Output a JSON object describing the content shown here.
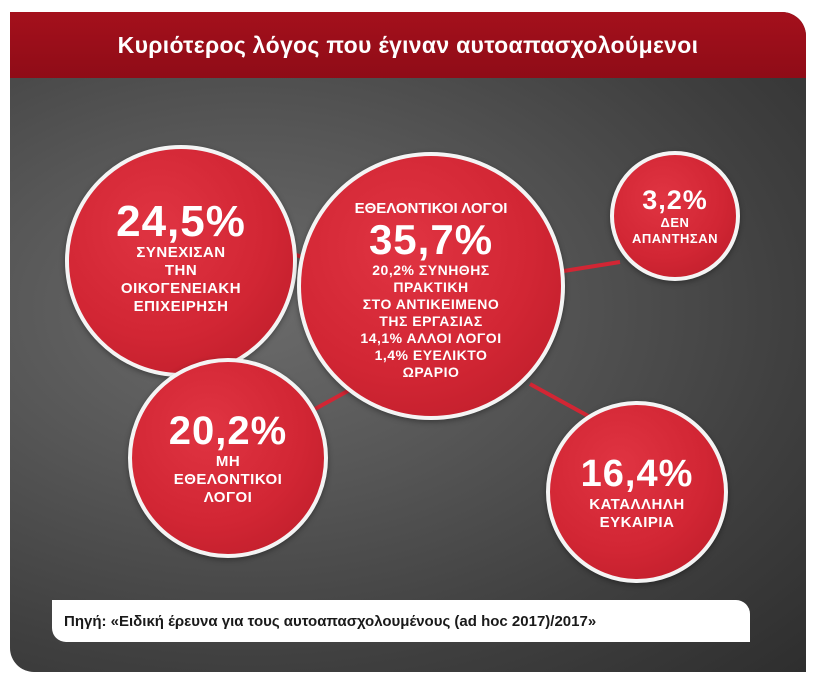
{
  "title": "Κυριότερος λόγος που έγιναν αυτοαπασχολούμενοι",
  "bubbles": {
    "family": {
      "percent": "24,5%",
      "lines": [
        "ΣΥΝΕΧΙΣΑΝ",
        "ΤΗΝ",
        "ΟΙΚΟΓΕΝΕΙΑΚΗ",
        "ΕΠΙΧΕΙΡΗΣΗ"
      ]
    },
    "volunteer": {
      "heading": "ΕΘΕΛΟΝΤΙΚΟΙ ΛΟΓΟΙ",
      "percent": "35,7%",
      "lines": [
        "20,2% ΣΥΝΗΘΗΣ",
        "ΠΡΑΚΤΙΚΗ",
        "ΣΤΟ ΑΝΤΙΚΕΙΜΕΝΟ",
        "ΤΗΣ ΕΡΓΑΣΙΑΣ",
        "14,1% ΑΛΛΟΙ ΛΟΓΟΙ",
        "1,4% ΕΥΕΛΙΚΤΟ",
        "ΩΡΑΡΙΟ"
      ]
    },
    "no_answer": {
      "percent": "3,2%",
      "lines": [
        "ΔΕΝ",
        "ΑΠΑΝΤΗΣΑΝ"
      ]
    },
    "non_volunteer": {
      "percent": "20,2%",
      "lines": [
        "ΜΗ",
        "ΕΘΕΛΟΝΤΙΚΟΙ",
        "ΛΟΓΟΙ"
      ]
    },
    "opportunity": {
      "percent": "16,4%",
      "lines": [
        "ΚΑΤΑΛΛΗΛΗ",
        "ΕΥΚΑΙΡΙΑ"
      ]
    }
  },
  "source": "Πηγή: «Ειδική έρευνα για τους αυτοαπασχολουμένους (ad hoc 2017)/2017»",
  "colors": {
    "title_bar": "#a4101c",
    "bubble": "#d22634",
    "bubble_border": "#f4f4f4",
    "background": "#4a4a4a"
  }
}
